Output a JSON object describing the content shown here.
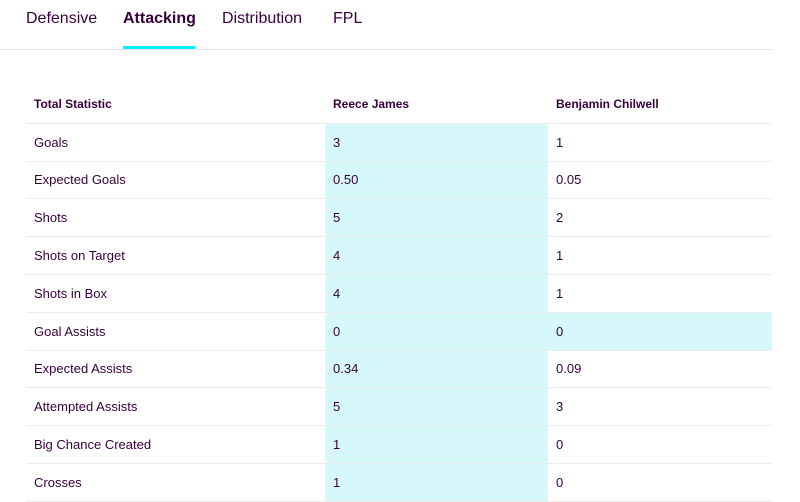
{
  "tabs": [
    {
      "label": "Defensive",
      "active": false
    },
    {
      "label": "Attacking",
      "active": true
    },
    {
      "label": "Distribution",
      "active": false
    },
    {
      "label": "FPL",
      "active": false
    }
  ],
  "colors": {
    "accent": "#05f0ff",
    "highlight": "#d6f8fb",
    "text": "#37003c"
  },
  "table": {
    "headers": [
      "Total Statistic",
      "Reece James",
      "Benjamin Chilwell"
    ],
    "rows": [
      {
        "stat": "Goals",
        "p1": "3",
        "p2": "1",
        "p1_leader": true,
        "p2_leader": false
      },
      {
        "stat": "Expected Goals",
        "p1": "0.50",
        "p2": "0.05",
        "p1_leader": true,
        "p2_leader": false
      },
      {
        "stat": "Shots",
        "p1": "5",
        "p2": "2",
        "p1_leader": true,
        "p2_leader": false
      },
      {
        "stat": "Shots on Target",
        "p1": "4",
        "p2": "1",
        "p1_leader": true,
        "p2_leader": false
      },
      {
        "stat": "Shots in Box",
        "p1": "4",
        "p2": "1",
        "p1_leader": true,
        "p2_leader": false
      },
      {
        "stat": "Goal Assists",
        "p1": "0",
        "p2": "0",
        "p1_leader": true,
        "p2_leader": true
      },
      {
        "stat": "Expected Assists",
        "p1": "0.34",
        "p2": "0.09",
        "p1_leader": true,
        "p2_leader": false
      },
      {
        "stat": "Attempted Assists",
        "p1": "5",
        "p2": "3",
        "p1_leader": true,
        "p2_leader": false
      },
      {
        "stat": "Big Chance Created",
        "p1": "1",
        "p2": "0",
        "p1_leader": true,
        "p2_leader": false
      },
      {
        "stat": "Crosses",
        "p1": "1",
        "p2": "0",
        "p1_leader": true,
        "p2_leader": false
      }
    ]
  }
}
